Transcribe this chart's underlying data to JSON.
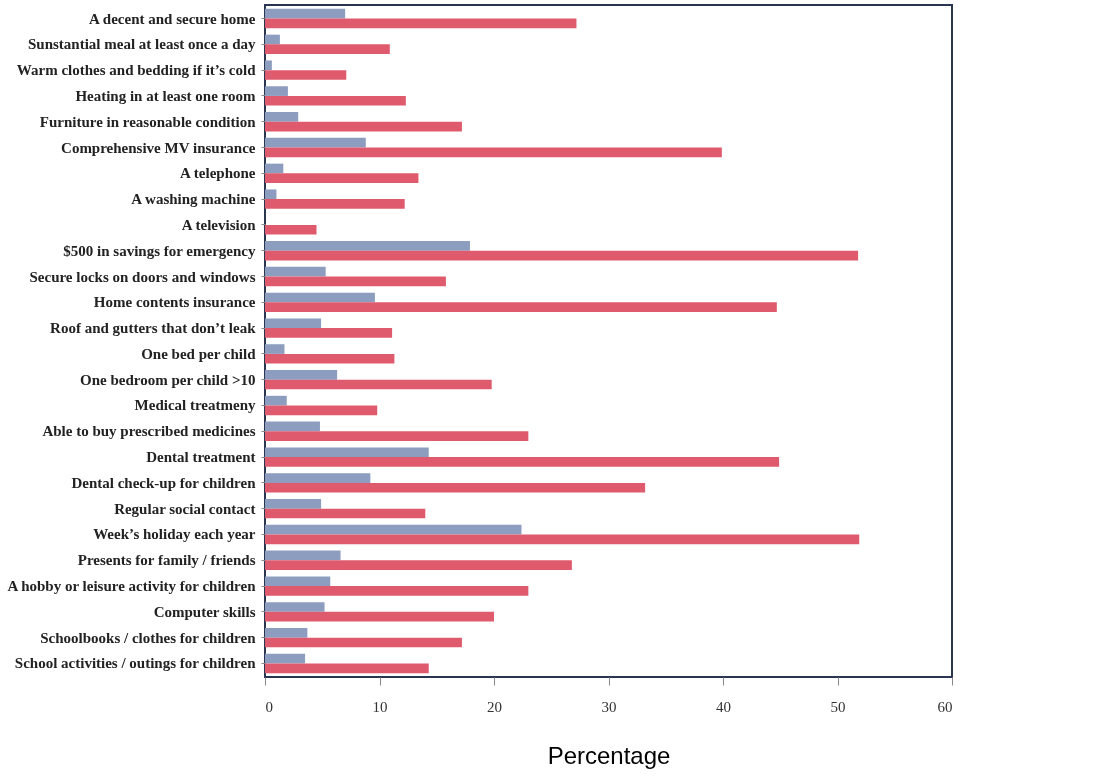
{
  "chart_data": {
    "type": "bar",
    "orientation": "horizontal",
    "xlabel": "Percentage",
    "categories": [
      "A decent and secure home",
      "Sunstantial meal at least once a day",
      "Warm clothes and bedding if it’s cold",
      "Heating in at least one room",
      "Furniture in reasonable condition",
      "Comprehensive MV insurance",
      "A telephone",
      "A washing machine",
      "A television",
      "$500 in savings for emergency",
      "Secure locks on doors and windows",
      "Home contents insurance",
      "Roof and gutters that don’t leak",
      "One bed per child",
      "One bedroom per child >10",
      "Medical treatmeny",
      "Able to buy prescribed medicines",
      "Dental treatment",
      "Dental check-up for children",
      "Regular social contact",
      "Week’s holiday each year",
      "Presents for family / friends",
      "A hobby or leisure activity for children",
      "Computer skills",
      "Schoolbooks / clothes for children",
      "School activities / outings for children"
    ],
    "series": [
      {
        "color": "#8c9dbf",
        "values": [
          7.0,
          1.3,
          0.6,
          2.0,
          2.9,
          8.8,
          1.6,
          1.0,
          null,
          17.9,
          5.3,
          9.6,
          4.9,
          1.7,
          6.3,
          1.9,
          4.8,
          14.3,
          9.2,
          4.9,
          22.4,
          6.6,
          5.7,
          5.2,
          3.7,
          3.5
        ]
      },
      {
        "color": "#e05a6e",
        "values": [
          27.2,
          10.9,
          7.1,
          12.3,
          17.2,
          39.9,
          13.4,
          12.2,
          4.5,
          51.8,
          15.8,
          44.7,
          11.1,
          11.3,
          19.8,
          9.8,
          23.0,
          44.9,
          33.2,
          14.0,
          51.9,
          26.8,
          23.0,
          20.0,
          17.2,
          14.3
        ]
      }
    ],
    "xlim": [
      0,
      60
    ],
    "xticks": [
      0,
      10,
      20,
      30,
      40,
      50,
      60
    ],
    "grid": false,
    "legend": false
  }
}
